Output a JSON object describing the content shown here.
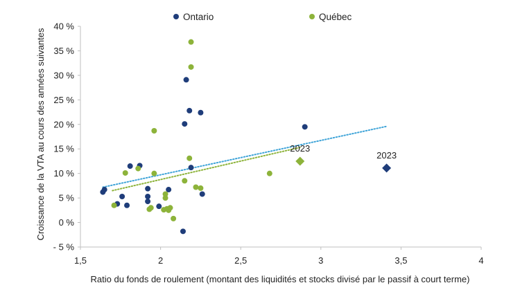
{
  "chart_data": {
    "type": "scatter",
    "title": "",
    "xlabel": "Ratio du fonds de roulement (montant des liquidités et stocks divisé par le passif à court terme)",
    "ylabel": "Croissance de la VTA au cours des années suivantes",
    "xlim": [
      1.5,
      4
    ],
    "ylim": [
      -5,
      40
    ],
    "x_ticks": [
      {
        "value": 1.5,
        "label": "1,5"
      },
      {
        "value": 2,
        "label": "2"
      },
      {
        "value": 2.5,
        "label": "2,5"
      },
      {
        "value": 3,
        "label": "3"
      },
      {
        "value": 3.5,
        "label": "3,5"
      },
      {
        "value": 4,
        "label": "4"
      }
    ],
    "y_ticks": [
      {
        "value": -5,
        "label": "- 5 %"
      },
      {
        "value": 0,
        "label": "0 %"
      },
      {
        "value": 5,
        "label": "5 %"
      },
      {
        "value": 10,
        "label": "10 %"
      },
      {
        "value": 15,
        "label": "15 %"
      },
      {
        "value": 20,
        "label": "20 %"
      },
      {
        "value": 25,
        "label": "25 %"
      },
      {
        "value": 30,
        "label": "30 %"
      },
      {
        "value": 35,
        "label": "35 %"
      },
      {
        "value": 40,
        "label": "40 %"
      }
    ],
    "grid": false,
    "legend_position": "top",
    "series": [
      {
        "name": "Ontario",
        "color": "#1f3d7a",
        "points": [
          [
            1.64,
            6.2
          ],
          [
            1.65,
            6.7
          ],
          [
            1.73,
            3.8
          ],
          [
            1.76,
            5.3
          ],
          [
            1.79,
            3.5
          ],
          [
            1.81,
            11.5
          ],
          [
            1.87,
            11.6
          ],
          [
            1.92,
            4.3
          ],
          [
            1.92,
            6.9
          ],
          [
            1.92,
            5.3
          ],
          [
            1.99,
            3.3
          ],
          [
            2.05,
            6.7
          ],
          [
            2.14,
            -1.8
          ],
          [
            2.15,
            20.1
          ],
          [
            2.16,
            29.1
          ],
          [
            2.18,
            22.8
          ],
          [
            2.19,
            11.2
          ],
          [
            2.25,
            22.4
          ],
          [
            2.26,
            5.8
          ],
          [
            2.9,
            19.5
          ]
        ],
        "trend": [
          [
            1.64,
            7.2
          ],
          [
            3.41,
            19.6
          ]
        ],
        "marker_2023": {
          "x": 3.41,
          "y": 11.1,
          "label": "2023"
        }
      },
      {
        "name": "Québec",
        "color": "#8db33a",
        "points": [
          [
            1.71,
            3.5
          ],
          [
            1.78,
            10.1
          ],
          [
            1.86,
            11.0
          ],
          [
            1.93,
            2.7
          ],
          [
            1.94,
            3.0
          ],
          [
            1.96,
            18.7
          ],
          [
            1.96,
            10.0
          ],
          [
            2.02,
            2.6
          ],
          [
            2.03,
            5.0
          ],
          [
            2.03,
            5.8
          ],
          [
            2.04,
            2.8
          ],
          [
            2.05,
            2.5
          ],
          [
            2.06,
            3.0
          ],
          [
            2.08,
            0.8
          ],
          [
            2.15,
            8.5
          ],
          [
            2.18,
            13.1
          ],
          [
            2.19,
            36.8
          ],
          [
            2.19,
            31.7
          ],
          [
            2.22,
            7.2
          ],
          [
            2.25,
            7.0
          ],
          [
            2.68,
            10.0
          ]
        ],
        "trend": [
          [
            1.7,
            6.5
          ],
          [
            2.87,
            15.3
          ]
        ],
        "marker_2023": {
          "x": 2.87,
          "y": 12.5,
          "label": "2023"
        }
      }
    ]
  }
}
